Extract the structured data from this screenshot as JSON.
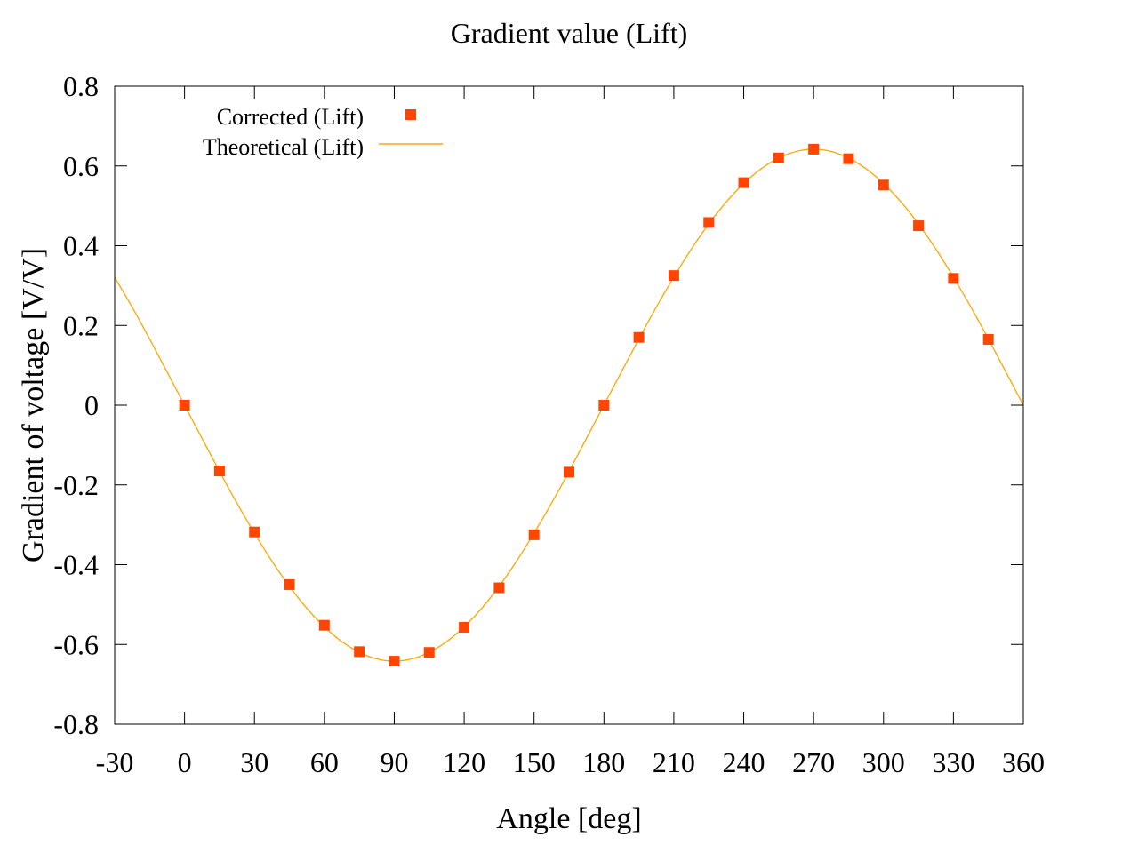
{
  "chart_data": {
    "type": "scatter",
    "title": "Gradient value (Lift)",
    "xlabel": "Angle [deg]",
    "ylabel": "Gradient of voltage [V/V]",
    "xlim": [
      -30,
      360
    ],
    "ylim": [
      -0.8,
      0.8
    ],
    "xticks": [
      -30,
      0,
      30,
      60,
      90,
      120,
      150,
      180,
      210,
      240,
      270,
      300,
      330,
      360
    ],
    "xtick_labels": [
      "-30",
      "0",
      "30",
      "60",
      "90",
      "120",
      "150",
      "180",
      "210",
      "240",
      "270",
      "300",
      "330",
      "360"
    ],
    "yticks": [
      -0.8,
      -0.6,
      -0.4,
      -0.2,
      0,
      0.2,
      0.4,
      0.6,
      0.8
    ],
    "ytick_labels": [
      "-0.8",
      "-0.6",
      "-0.4",
      "-0.2",
      "0",
      "0.2",
      "0.4",
      "0.6",
      "0.8"
    ],
    "grid": false,
    "legend_position": "top-left",
    "series": [
      {
        "name": "Corrected (Lift)",
        "kind": "points",
        "marker": "square",
        "color": "#ff4500",
        "x": [
          0,
          15,
          30,
          45,
          60,
          75,
          90,
          105,
          120,
          135,
          150,
          165,
          180,
          195,
          210,
          225,
          240,
          255,
          270,
          285,
          300,
          315,
          330,
          345
        ],
        "y": [
          0.0,
          -0.165,
          -0.318,
          -0.45,
          -0.552,
          -0.618,
          -0.642,
          -0.62,
          -0.557,
          -0.458,
          -0.325,
          -0.168,
          0.0,
          0.17,
          0.325,
          0.458,
          0.558,
          0.62,
          0.642,
          0.618,
          0.552,
          0.45,
          0.318,
          0.165
        ]
      },
      {
        "name": "Theoretical (Lift)",
        "kind": "line",
        "color": "#ffa500",
        "x": [
          -30,
          -20,
          -10,
          0,
          10,
          20,
          30,
          40,
          50,
          60,
          70,
          80,
          90,
          100,
          110,
          120,
          130,
          140,
          150,
          160,
          170,
          180,
          190,
          200,
          210,
          220,
          230,
          240,
          250,
          260,
          270,
          280,
          290,
          300,
          310,
          320,
          330,
          340,
          350,
          360
        ],
        "y": [
          0.321,
          0.22,
          0.111,
          0.0,
          -0.111,
          -0.22,
          -0.321,
          -0.413,
          -0.492,
          -0.556,
          -0.603,
          -0.632,
          -0.642,
          -0.632,
          -0.603,
          -0.556,
          -0.492,
          -0.413,
          -0.321,
          -0.22,
          -0.111,
          0.0,
          0.111,
          0.22,
          0.321,
          0.413,
          0.492,
          0.556,
          0.603,
          0.632,
          0.642,
          0.632,
          0.603,
          0.556,
          0.492,
          0.413,
          0.321,
          0.22,
          0.111,
          0.0
        ]
      }
    ]
  }
}
